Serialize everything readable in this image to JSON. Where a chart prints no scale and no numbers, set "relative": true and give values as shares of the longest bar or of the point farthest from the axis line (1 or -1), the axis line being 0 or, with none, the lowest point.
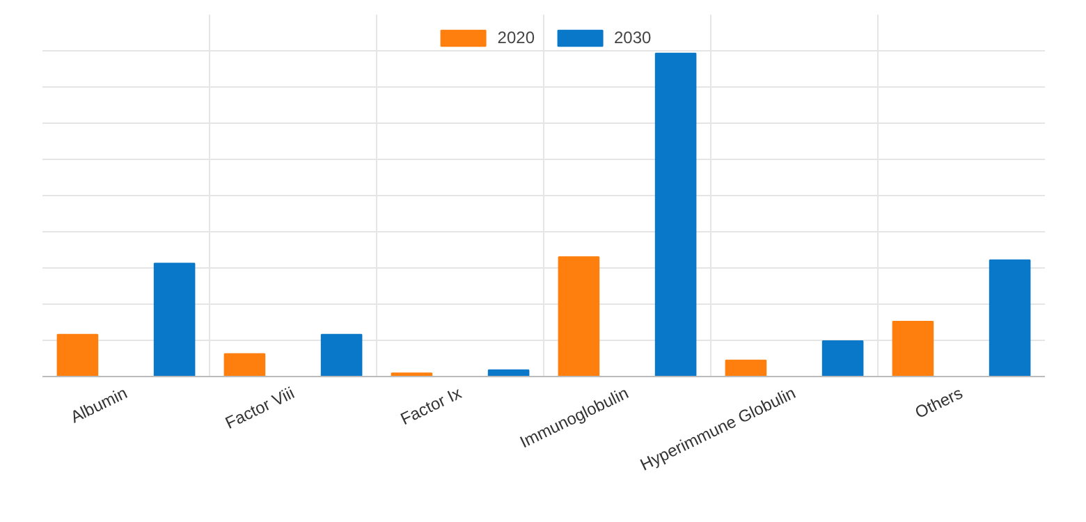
{
  "chart_data": {
    "type": "bar",
    "relative": true,
    "categories": [
      "Albumin",
      "Factor Viii",
      "Factor Ix",
      "Immunoglobulin",
      "Hyperimmune Globulin",
      "Others"
    ],
    "series": [
      {
        "name": "2020",
        "color": "#ff7f0e",
        "values": [
          0.13,
          0.07,
          0.01,
          0.37,
          0.05,
          0.17
        ]
      },
      {
        "name": "2030",
        "color": "#0a78c8",
        "values": [
          0.35,
          0.13,
          0.02,
          1.0,
          0.11,
          0.36
        ]
      }
    ],
    "grid": true,
    "legend": "top"
  }
}
